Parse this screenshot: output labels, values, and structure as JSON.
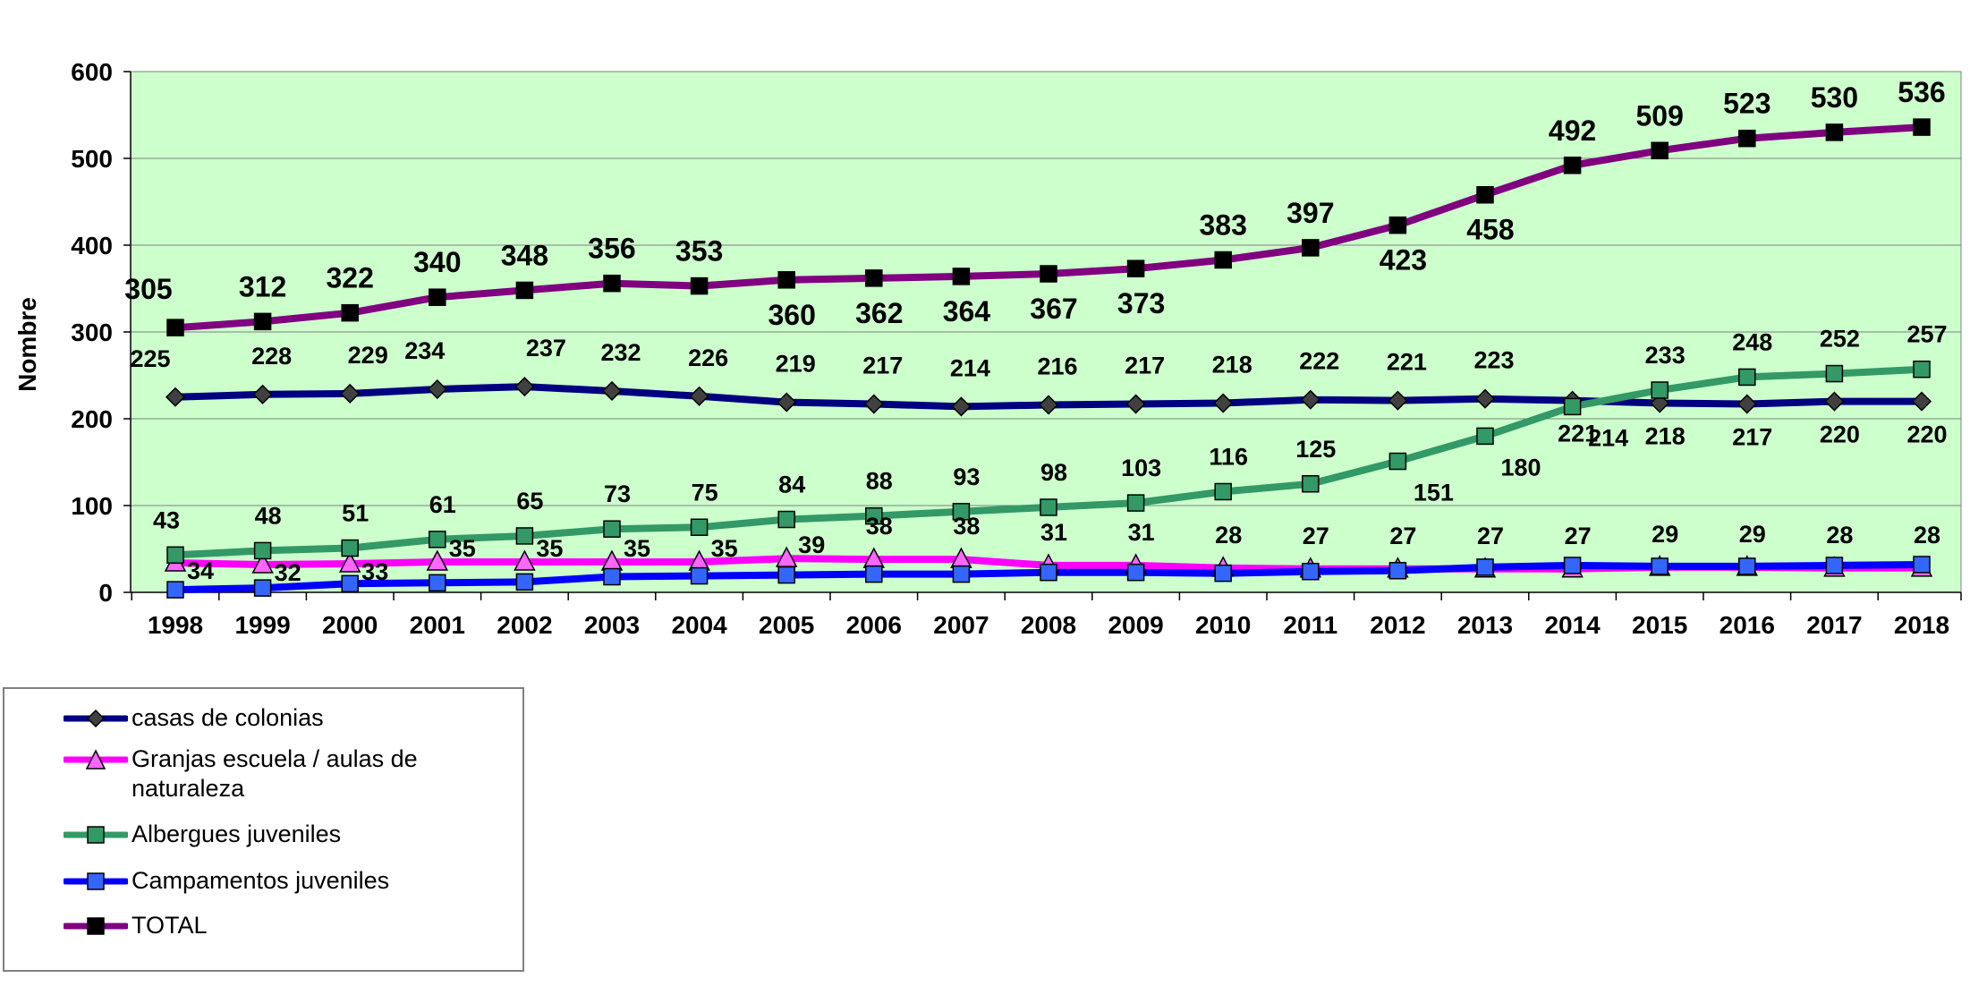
{
  "chart_data": {
    "type": "line",
    "title": "",
    "xlabel": "",
    "ylabel": "Nombre",
    "ylim": [
      0,
      600
    ],
    "yticks": [
      "0",
      "100",
      "200",
      "300",
      "400",
      "500",
      "600"
    ],
    "grid": true,
    "legend_position": "bottom-left",
    "plot_background": "#ccffcc",
    "categories": [
      "1998",
      "1999",
      "2000",
      "2001",
      "2002",
      "2003",
      "2004",
      "2005",
      "2006",
      "2007",
      "2008",
      "2009",
      "2010",
      "2011",
      "2012",
      "2013",
      "2014",
      "2015",
      "2016",
      "2017",
      "2018"
    ],
    "series": [
      {
        "name": "casas de colonias",
        "color": "#000080",
        "marker": "diamond",
        "marker_color": "#404040",
        "values": [
          225,
          228,
          229,
          234,
          237,
          232,
          226,
          219,
          217,
          214,
          216,
          217,
          218,
          222,
          221,
          223,
          221,
          218,
          217,
          220,
          220
        ],
        "labels": [
          "225",
          "228",
          "229",
          "234",
          "237",
          "232",
          "226",
          "219",
          "217",
          "214",
          "216",
          "217",
          "218",
          "222",
          "221",
          "223",
          "221",
          "218",
          "217",
          "220",
          "220"
        ]
      },
      {
        "name": "Granjas escuela / aulas de naturaleza",
        "color": "#ff00ff",
        "marker": "triangle",
        "marker_color": "#ff66ff",
        "values": [
          34,
          32,
          33,
          35,
          35,
          35,
          35,
          39,
          38,
          38,
          31,
          31,
          28,
          27,
          27,
          27,
          27,
          29,
          29,
          28,
          28
        ],
        "labels": [
          "34",
          "32",
          "33",
          "35",
          "35",
          "35",
          "35",
          "39",
          "38",
          "38",
          "31",
          "31",
          "28",
          "27",
          "27",
          "27",
          "27",
          "29",
          "29",
          "28",
          "28"
        ]
      },
      {
        "name": "Albergues juveniles",
        "color": "#339966",
        "marker": "square",
        "marker_color": "#339966",
        "values": [
          43,
          48,
          51,
          61,
          65,
          73,
          75,
          84,
          88,
          93,
          98,
          103,
          116,
          125,
          151,
          180,
          214,
          233,
          248,
          252,
          257
        ],
        "labels": [
          "43",
          "48",
          "51",
          "61",
          "65",
          "73",
          "75",
          "84",
          "88",
          "93",
          "98",
          "103",
          "116",
          "125",
          "151",
          "180",
          "214",
          "233",
          "248",
          "252",
          "257"
        ]
      },
      {
        "name": "Campamentos juveniles",
        "color": "#0000ff",
        "marker": "square",
        "marker_color": "#3366ff",
        "values": [
          3,
          5,
          10,
          11,
          12,
          18,
          19,
          20,
          21,
          21,
          23,
          23,
          22,
          24,
          25,
          29,
          31,
          30,
          30,
          31,
          32
        ],
        "labels": []
      },
      {
        "name": "TOTAL",
        "color": "#800080",
        "marker": "square",
        "marker_color": "#000000",
        "values": [
          305,
          312,
          322,
          340,
          348,
          356,
          353,
          360,
          362,
          364,
          367,
          373,
          383,
          397,
          423,
          458,
          492,
          509,
          523,
          530,
          536
        ],
        "labels": [
          "305",
          "312",
          "322",
          "340",
          "348",
          "356",
          "353",
          "360",
          "362",
          "364",
          "367",
          "373",
          "383",
          "397",
          "423",
          "458",
          "492",
          "509",
          "523",
          "530",
          "536"
        ]
      }
    ]
  },
  "legend": {
    "items": [
      "casas de colonias",
      "Granjas escuela / aulas de naturaleza",
      "Albergues juveniles",
      "Campamentos juveniles",
      "TOTAL"
    ]
  }
}
